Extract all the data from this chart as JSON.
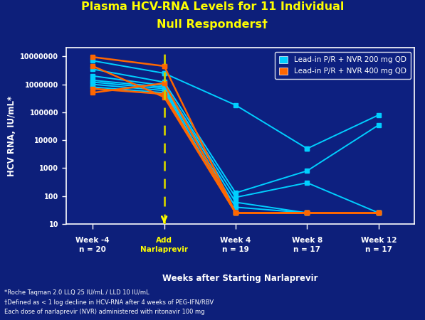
{
  "title_line1": "Plasma HCV-RNA Levels for 11 Individual",
  "title_line2": "Null Responders†",
  "xlabel": "Weeks after Starting Narlaprevir",
  "ylabel": "HCV RNA, IU/mL*",
  "bg_color": "#0d1f7a",
  "plot_bg_color": "#0d2080",
  "title_color": "#ffff00",
  "axis_label_color": "#ffffff",
  "tick_color": "#ffffff",
  "footnote_color": "#ffffff",
  "legend_bg_color": "#0d2080",
  "ylim_log_min": 10,
  "ylim_log_max": 20000000,
  "xlim_min": -5.5,
  "xlim_max": 14.0,
  "xtick_positions": [
    -4,
    0,
    4,
    8,
    12
  ],
  "xtick_labels_line1": [
    "Week -4",
    "Add",
    "Week 4",
    "Week 8",
    "Week 12"
  ],
  "xtick_labels_line2": [
    "n = 20",
    "Narlaprevir",
    "n = 19",
    "n = 17",
    "n = 17"
  ],
  "xtick_colors": [
    "#ffffff",
    "#ffff00",
    "#ffffff",
    "#ffffff",
    "#ffffff"
  ],
  "dashed_line_x": 0,
  "dashed_line_color": "#cccc00",
  "arrow_color": "#ffff00",
  "cyan_color": "#00cfff",
  "orange_color": "#ff6600",
  "cyan_label": "Lead-in P/R + NVR 200 mg QD",
  "orange_label": "Lead-in P/R + NVR 400 mg QD",
  "footnotes": [
    "*Roche Taqman 2.0 LLQ 25 IU/mL / LLD 10 IU/mL",
    "†Defined as < 1 log decline in HCV-RNA after 4 weeks of PEG-IFN/RBV",
    "Each dose of narlaprevir (NVR) administered with ritonavir 100 mg"
  ],
  "cyan_lines": [
    [
      -4,
      7000000,
      0,
      2500000,
      0,
      2500000,
      4,
      180000,
      8,
      5000,
      8,
      5000,
      12,
      80000
    ],
    [
      -4,
      3500000,
      0,
      1200000,
      4,
      130,
      8,
      800,
      12,
      35000
    ],
    [
      -4,
      2000000,
      0,
      900000,
      4,
      90,
      8,
      300,
      12,
      25
    ],
    [
      -4,
      1400000,
      0,
      800000,
      4,
      60,
      8,
      25,
      12,
      25
    ],
    [
      -4,
      1200000,
      0,
      700000,
      4,
      40,
      8,
      25,
      12,
      25
    ],
    [
      -4,
      1000000,
      0,
      600000,
      4,
      25,
      8,
      25,
      12,
      25
    ],
    [
      -4,
      800000,
      0,
      500000,
      4,
      25,
      8,
      25,
      12,
      25
    ]
  ],
  "orange_lines": [
    [
      -4,
      9500000,
      0,
      4500000,
      0,
      4500000,
      4,
      25,
      8,
      25,
      12,
      25
    ],
    [
      -4,
      4500000,
      0,
      350000,
      4,
      25,
      8,
      25,
      12,
      25
    ],
    [
      -4,
      700000,
      0,
      450000,
      4,
      25,
      8,
      25,
      12,
      25
    ],
    [
      -4,
      500000,
      0,
      1100000,
      4,
      25,
      8,
      25,
      12,
      25
    ]
  ]
}
